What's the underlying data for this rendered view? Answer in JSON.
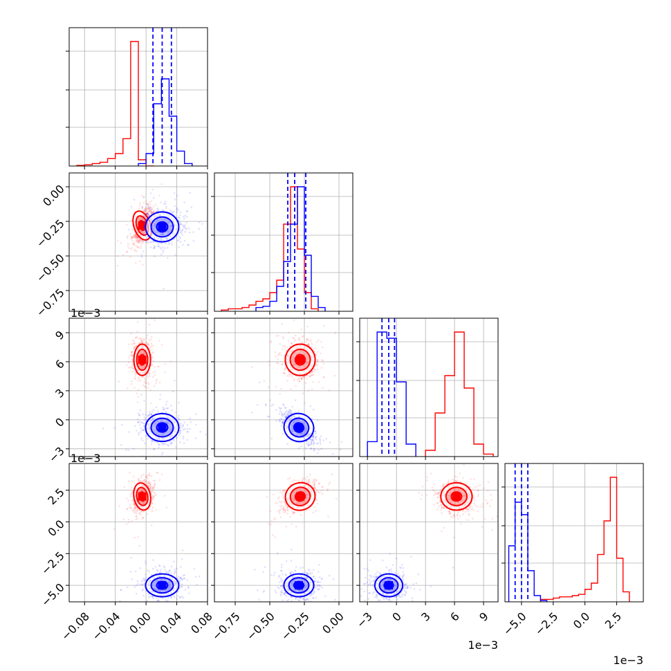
{
  "chart_data": {
    "type": "corner",
    "colors": {
      "red": "#ff0000",
      "blue": "#0000ff",
      "grid": "#b0b0b0"
    },
    "dims": [
      {
        "range": [
          -0.1,
          0.08
        ],
        "ticks": [
          -0.08,
          -0.04,
          0.0,
          0.04,
          0.08
        ],
        "tick_labels": [
          "−0.08",
          "−0.04",
          "0.00",
          "0.04",
          "0.08"
        ],
        "offset": ""
      },
      {
        "range": [
          -0.9,
          0.1
        ],
        "ticks": [
          -0.75,
          -0.5,
          -0.25,
          0.0
        ],
        "tick_labels": [
          "−0.75",
          "−0.50",
          "−0.25",
          "0.00"
        ],
        "offset": ""
      },
      {
        "range": [
          -3.8,
          10.5
        ],
        "ticks": [
          -3,
          0,
          3,
          6,
          9
        ],
        "tick_labels": [
          "−3",
          "0",
          "3",
          "6",
          "9"
        ],
        "offset": "1e−3"
      },
      {
        "range": [
          -6.3,
          4.6
        ],
        "ticks": [
          -5.0,
          -2.5,
          0.0,
          2.5
        ],
        "tick_labels": [
          "−5.0",
          "−2.5",
          "0.0",
          "2.5"
        ],
        "offset": "1e−3"
      }
    ],
    "series": [
      {
        "color": "red",
        "mean": [
          -0.005,
          -0.28,
          6.2,
          2.0
        ],
        "std": [
          0.006,
          0.06,
          0.9,
          0.6
        ],
        "hist": [
          {
            "edges": [
              -0.09,
              -0.08,
              -0.07,
              -0.06,
              -0.05,
              -0.04,
              -0.03,
              -0.02,
              -0.01,
              0.0,
              0.01
            ],
            "counts": [
              0.005,
              0.01,
              0.02,
              0.03,
              0.06,
              0.1,
              0.22,
              1.0,
              0.05,
              0.0
            ]
          },
          {
            "edges": [
              -0.85,
              -0.8,
              -0.75,
              -0.7,
              -0.65,
              -0.6,
              -0.55,
              -0.5,
              -0.45,
              -0.4,
              -0.35,
              -0.3,
              -0.25,
              -0.2,
              -0.15
            ],
            "counts": [
              0.01,
              0.02,
              0.02,
              0.03,
              0.05,
              0.08,
              0.1,
              0.15,
              0.25,
              0.7,
              1.0,
              0.5,
              0.15,
              0.02
            ]
          },
          {
            "edges": [
              3,
              4,
              5,
              6,
              7,
              8,
              9,
              10
            ],
            "counts": [
              0.05,
              0.35,
              0.65,
              1.0,
              0.55,
              0.1,
              0.02
            ]
          },
          {
            "edges": [
              -3.5,
              -3.0,
              -2.5,
              -2.0,
              -1.5,
              -1.0,
              -0.5,
              0.0,
              0.5,
              1.0,
              1.5,
              2.0,
              2.5,
              3.0,
              3.5
            ],
            "counts": [
              0.02,
              0.02,
              0.03,
              0.04,
              0.04,
              0.05,
              0.06,
              0.1,
              0.15,
              0.38,
              0.65,
              1.0,
              0.35,
              0.08
            ]
          }
        ]
      },
      {
        "color": "blue",
        "mean": [
          0.021,
          -0.29,
          -0.8,
          -5.0
        ],
        "std": [
          0.012,
          0.06,
          0.8,
          0.5
        ],
        "hist": [
          {
            "edges": [
              -0.01,
              0.0,
              0.01,
              0.02,
              0.03,
              0.04,
              0.05,
              0.06
            ],
            "counts": [
              0.02,
              0.1,
              0.5,
              0.7,
              0.4,
              0.12,
              0.02
            ]
          },
          {
            "edges": [
              -0.6,
              -0.55,
              -0.5,
              -0.45,
              -0.4,
              -0.35,
              -0.3,
              -0.25,
              -0.2,
              -0.15,
              -0.1
            ],
            "counts": [
              0.03,
              0.04,
              0.08,
              0.2,
              0.4,
              0.7,
              1.0,
              0.45,
              0.12,
              0.03
            ]
          },
          {
            "edges": [
              -3,
              -2,
              -1,
              0,
              1,
              2
            ],
            "counts": [
              0.12,
              1.0,
              0.95,
              0.6,
              0.1
            ]
          },
          {
            "edges": [
              -6.0,
              -5.5,
              -5.0,
              -4.5,
              -4.0,
              -3.5,
              -3.0
            ],
            "counts": [
              0.45,
              0.8,
              0.7,
              0.25,
              0.05,
              0.01
            ]
          }
        ],
        "quantiles": [
          [
            0.009,
            0.021,
            0.033
          ],
          [
            -0.37,
            -0.32,
            -0.24
          ],
          [
            -1.5,
            -0.8,
            -0.2
          ],
          [
            -5.5,
            -5.0,
            -4.5
          ]
        ]
      }
    ]
  }
}
